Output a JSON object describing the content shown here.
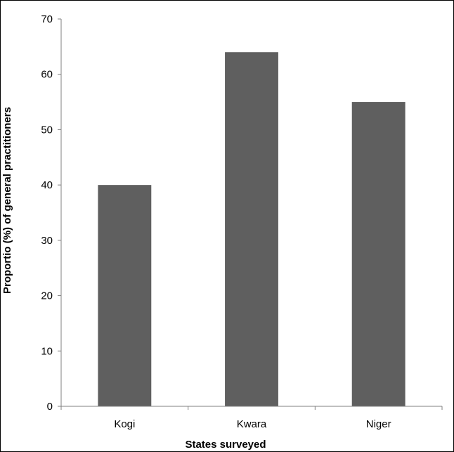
{
  "chart_data": {
    "type": "bar",
    "categories": [
      "Kogi",
      "Kwara",
      "Niger"
    ],
    "values": [
      40,
      64,
      55
    ],
    "title": "",
    "xlabel": "States surveyed",
    "ylabel": "Proportio (%) of general practitioners",
    "ylim": [
      0,
      70
    ],
    "yticks": [
      0,
      10,
      20,
      30,
      40,
      50,
      60,
      70
    ],
    "grid": false,
    "legend": "none",
    "colors": {
      "bar": "#5f5f5f",
      "axis": "#808080",
      "text": "#000000",
      "frame": "#000000"
    }
  }
}
